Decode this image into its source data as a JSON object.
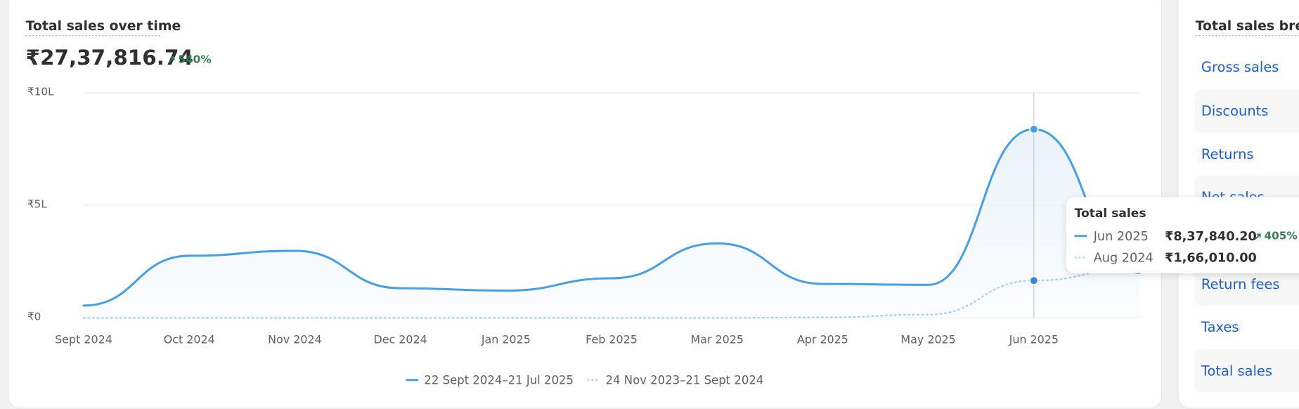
{
  "header": {
    "title": "Total sales over time",
    "total": "₹27,37,816.74",
    "change": "540%"
  },
  "chart_data": {
    "type": "line",
    "categories": [
      "Sept 2024",
      "Oct 2024",
      "Nov 2024",
      "Dec 2024",
      "Jan 2025",
      "Feb 2025",
      "Mar 2025",
      "Apr 2025",
      "May 2025",
      "Jun 2025",
      null
    ],
    "series": [
      {
        "name": "22 Sept 2024–21 Jul 2025",
        "color": "#4a9fe3",
        "values": [
          55000,
          276000,
          298000,
          132000,
          121000,
          176000,
          331000,
          151000,
          147000,
          837840.2,
          200000
        ]
      },
      {
        "name": "24 Nov 2023–21 Sept 2024",
        "color": "#a8d0f2",
        "values": [
          0,
          0,
          0,
          0,
          0,
          0,
          0,
          2000,
          15000,
          166010,
          225000
        ]
      }
    ],
    "ylim": [
      0,
      1000000
    ],
    "yticks": [
      {
        "value": 0,
        "label": "₹0"
      },
      {
        "value": 500000,
        "label": "₹5L"
      },
      {
        "value": 1000000,
        "label": "₹10L"
      }
    ],
    "grid": true,
    "legend": "bottom"
  },
  "tooltip": {
    "title": "Total sales",
    "rows": [
      {
        "period": "Jun 2025",
        "value": "₹8,37,840.20",
        "change": "405%"
      },
      {
        "period": "Aug 2024",
        "value": "₹1,66,010.00"
      }
    ]
  },
  "breakdown": {
    "title": "Total sales brea",
    "items": [
      "Gross sales",
      "Discounts",
      "Returns",
      "Net sales",
      "Return fees",
      "Taxes",
      "Total sales"
    ]
  }
}
